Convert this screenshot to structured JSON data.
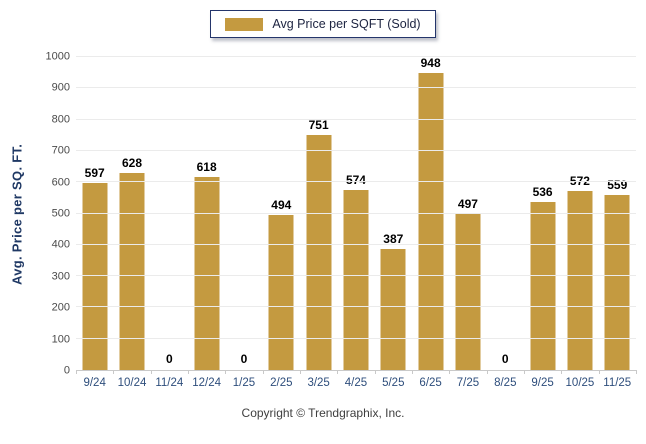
{
  "legend": {
    "label": "Avg Price per SQFT (Sold)",
    "swatch_color": "#C49A40"
  },
  "y_axis": {
    "title": "Avg. Price per SQ. FT.",
    "min": 0,
    "max": 1000,
    "step": 100
  },
  "footer": {
    "copyright": "Copyright © Trendgraphix, Inc."
  },
  "chart_data": {
    "type": "bar",
    "title": "Avg Price per SQFT (Sold)",
    "categories": [
      "9/24",
      "10/24",
      "11/24",
      "12/24",
      "1/25",
      "2/25",
      "3/25",
      "4/25",
      "5/25",
      "6/25",
      "7/25",
      "8/25",
      "9/25",
      "10/25",
      "11/25"
    ],
    "values": [
      597,
      628,
      0,
      618,
      0,
      494,
      751,
      574,
      387,
      948,
      497,
      0,
      536,
      572,
      559
    ],
    "xlabel": "",
    "ylabel": "Avg. Price per SQ. FT.",
    "ylim": [
      0,
      1000
    ],
    "grid": true,
    "bar_color": "#C49A40",
    "value_labels": true,
    "legend_position": "top"
  }
}
